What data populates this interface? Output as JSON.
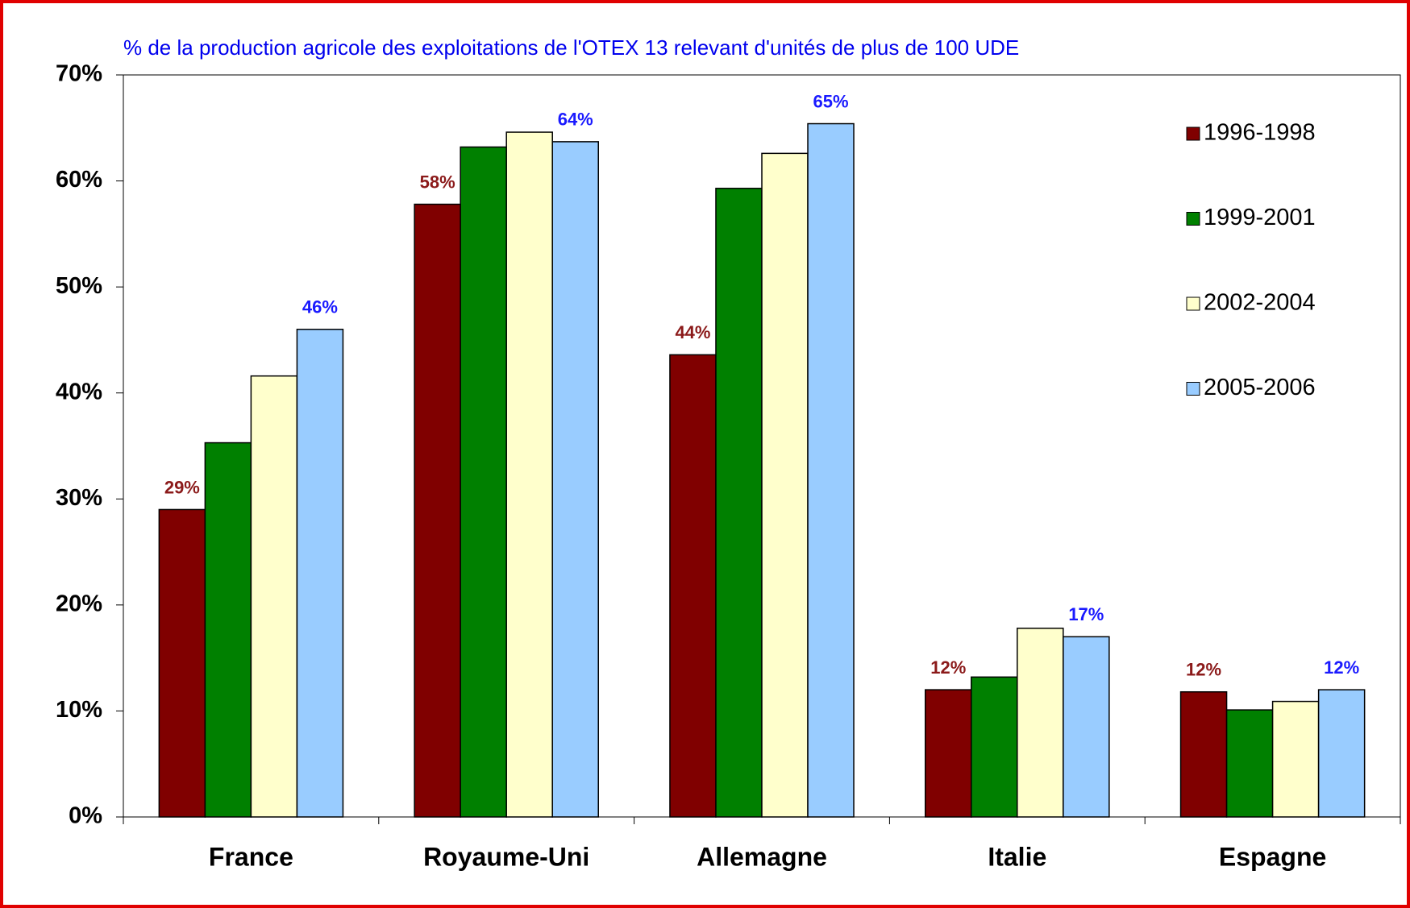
{
  "chart_data": {
    "type": "bar",
    "title": "% de la production agricole des exploitations de l'OTEX 13 relevant d'unités de plus de 100 UDE",
    "categories": [
      "France",
      "Royaume-Uni",
      "Allemagne",
      "Italie",
      "Espagne"
    ],
    "series": [
      {
        "name": "1996-1998",
        "color": "#800000",
        "label_color": "#8b1a1a",
        "values": [
          29,
          57.8,
          43.6,
          12,
          11.8
        ],
        "value_labels": [
          "29%",
          "58%",
          "44%",
          "12%",
          "12%"
        ]
      },
      {
        "name": "1999-2001",
        "color": "#008000",
        "values": [
          35.3,
          63.2,
          59.3,
          13.2,
          10.1
        ]
      },
      {
        "name": "2002-2004",
        "color": "#ffffcc",
        "values": [
          41.6,
          64.6,
          62.6,
          17.8,
          10.9
        ]
      },
      {
        "name": "2005-2006",
        "color": "#99ccff",
        "label_color": "#1a1aff",
        "values": [
          46,
          63.7,
          65.4,
          17,
          12
        ],
        "value_labels": [
          "46%",
          "64%",
          "65%",
          "17%",
          "12%"
        ]
      }
    ],
    "ylim": [
      0,
      70
    ],
    "yticks": [
      {
        "value": 0,
        "label": "0%"
      },
      {
        "value": 10,
        "label": "10%"
      },
      {
        "value": 20,
        "label": "20%"
      },
      {
        "value": 30,
        "label": "30%"
      },
      {
        "value": 40,
        "label": "40%"
      },
      {
        "value": 50,
        "label": "50%"
      },
      {
        "value": 60,
        "label": "60%"
      },
      {
        "value": 70,
        "label": "70%"
      }
    ],
    "grid": false,
    "legend": "upper right"
  }
}
